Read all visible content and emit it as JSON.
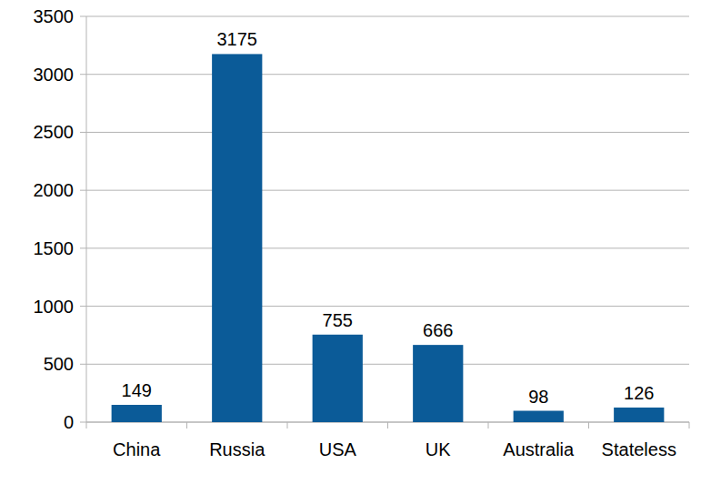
{
  "chart_data": {
    "type": "bar",
    "categories": [
      "China",
      "Russia",
      "USA",
      "UK",
      "Australia",
      "Stateless"
    ],
    "values": [
      149,
      3175,
      755,
      666,
      98,
      126
    ],
    "color": "#0b5b98",
    "ylim": [
      0,
      3500
    ],
    "yticks": [
      0,
      500,
      1000,
      1500,
      2000,
      2500,
      3000,
      3500
    ],
    "grid": true,
    "data_labels": true
  }
}
